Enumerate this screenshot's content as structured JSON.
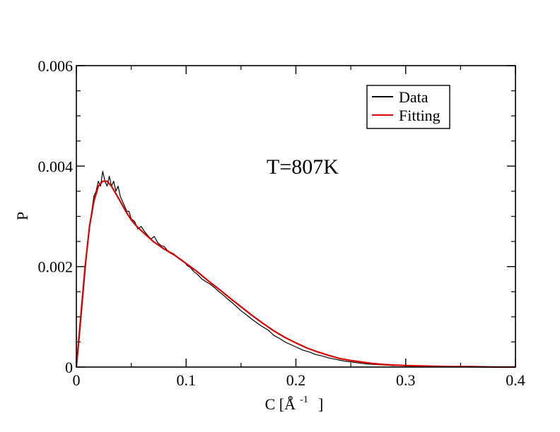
{
  "chart_data": {
    "type": "line",
    "title": "",
    "xlabel": "C [Å",
    "xlabel_sup": "-1",
    "xlabel_close": "]",
    "ylabel": "P",
    "xlim": [
      0,
      0.4
    ],
    "ylim": [
      0,
      0.006
    ],
    "xticks": [
      0,
      0.1,
      0.2,
      0.3,
      0.4
    ],
    "xtick_labels": [
      "0",
      "0.1",
      "0.2",
      "0.3",
      "0.4"
    ],
    "yticks": [
      0,
      0.002,
      0.004,
      0.006
    ],
    "ytick_labels": [
      "0",
      "0.002",
      "0.004",
      "0.006"
    ],
    "grid": false,
    "legend_position": "top-right",
    "annotation": "T=807K",
    "series": [
      {
        "name": "Data",
        "color": "#000000",
        "x": [
          0.0,
          0.002,
          0.004,
          0.006,
          0.008,
          0.01,
          0.012,
          0.014,
          0.016,
          0.018,
          0.02,
          0.022,
          0.024,
          0.026,
          0.028,
          0.03,
          0.032,
          0.034,
          0.036,
          0.038,
          0.04,
          0.042,
          0.044,
          0.046,
          0.048,
          0.05,
          0.053,
          0.056,
          0.059,
          0.062,
          0.065,
          0.068,
          0.071,
          0.074,
          0.077,
          0.08,
          0.083,
          0.086,
          0.089,
          0.092,
          0.095,
          0.098,
          0.101,
          0.104,
          0.107,
          0.11,
          0.114,
          0.118,
          0.122,
          0.126,
          0.13,
          0.134,
          0.138,
          0.142,
          0.146,
          0.15,
          0.155,
          0.16,
          0.165,
          0.17,
          0.175,
          0.18,
          0.185,
          0.19,
          0.195,
          0.2,
          0.206,
          0.212,
          0.218,
          0.224,
          0.23,
          0.237,
          0.244,
          0.251,
          0.258,
          0.265,
          0.273,
          0.281,
          0.289,
          0.297,
          0.305,
          0.314,
          0.323,
          0.332,
          0.341,
          0.35,
          0.36,
          0.37,
          0.38,
          0.39,
          0.4
        ],
        "y": [
          0.0,
          0.0004,
          0.0009,
          0.0014,
          0.0019,
          0.0024,
          0.0028,
          0.0031,
          0.0034,
          0.0035,
          0.0037,
          0.0036,
          0.0039,
          0.0037,
          0.0036,
          0.0038,
          0.0036,
          0.0037,
          0.0035,
          0.0036,
          0.0034,
          0.0033,
          0.0032,
          0.0031,
          0.0031,
          0.00295,
          0.0029,
          0.00275,
          0.0028,
          0.0027,
          0.00262,
          0.00255,
          0.0026,
          0.00248,
          0.00242,
          0.0024,
          0.00232,
          0.00228,
          0.00225,
          0.00218,
          0.00215,
          0.0021,
          0.00202,
          0.00198,
          0.0019,
          0.00185,
          0.00176,
          0.0017,
          0.00165,
          0.00158,
          0.0015,
          0.00143,
          0.00135,
          0.00128,
          0.0012,
          0.00112,
          0.00104,
          0.00095,
          0.00087,
          0.0008,
          0.00073,
          0.00063,
          0.00057,
          0.0005,
          0.00045,
          0.0004,
          0.00034,
          0.0003,
          0.00025,
          0.00022,
          0.00018,
          0.00015,
          0.00012,
          0.0001,
          8e-05,
          6e-05,
          5e-05,
          4e-05,
          3e-05,
          3e-05,
          2e-05,
          2e-05,
          1e-05,
          1e-05,
          1e-05,
          1e-05,
          0.0,
          0.0,
          0.0,
          0.0,
          0.0
        ]
      },
      {
        "name": "Fitting",
        "color": "#dd0000",
        "x": [
          0.0,
          0.004,
          0.008,
          0.012,
          0.016,
          0.02,
          0.024,
          0.028,
          0.032,
          0.036,
          0.04,
          0.045,
          0.05,
          0.055,
          0.06,
          0.07,
          0.08,
          0.09,
          0.1,
          0.11,
          0.12,
          0.13,
          0.14,
          0.15,
          0.16,
          0.17,
          0.18,
          0.19,
          0.2,
          0.21,
          0.22,
          0.23,
          0.24,
          0.25,
          0.26,
          0.27,
          0.28,
          0.29,
          0.3,
          0.32,
          0.34,
          0.36,
          0.38,
          0.4
        ],
        "y": [
          0.0,
          0.001,
          0.002,
          0.0028,
          0.0033,
          0.0036,
          0.0037,
          0.0037,
          0.0036,
          0.00345,
          0.0033,
          0.0031,
          0.00293,
          0.0028,
          0.0027,
          0.0025,
          0.00235,
          0.00222,
          0.00206,
          0.0019,
          0.00172,
          0.00155,
          0.00137,
          0.0012,
          0.00103,
          0.00087,
          0.00072,
          0.00059,
          0.00048,
          0.00038,
          0.0003,
          0.00023,
          0.00017,
          0.00013,
          0.0001,
          7e-05,
          5e-05,
          4e-05,
          3e-05,
          2e-05,
          1e-05,
          1e-05,
          0.0,
          0.0
        ]
      }
    ]
  }
}
